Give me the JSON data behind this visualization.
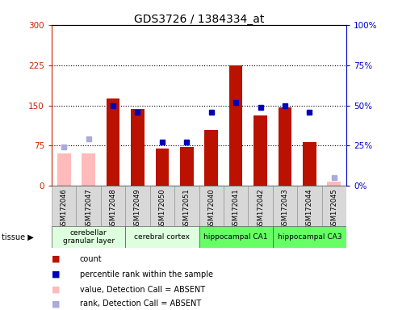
{
  "title": "GDS3726 / 1384334_at",
  "samples": [
    "GSM172046",
    "GSM172047",
    "GSM172048",
    "GSM172049",
    "GSM172050",
    "GSM172051",
    "GSM172040",
    "GSM172041",
    "GSM172042",
    "GSM172043",
    "GSM172044",
    "GSM172045"
  ],
  "count_values": [
    null,
    null,
    163,
    143,
    70,
    73,
    105,
    225,
    132,
    147,
    82,
    null
  ],
  "count_absent": [
    60,
    60,
    null,
    null,
    null,
    null,
    null,
    null,
    null,
    null,
    null,
    8
  ],
  "rank_values": [
    null,
    null,
    50,
    46,
    27,
    27,
    46,
    52,
    49,
    50,
    46,
    null
  ],
  "rank_absent": [
    24,
    29,
    null,
    null,
    null,
    null,
    null,
    null,
    null,
    null,
    null,
    5
  ],
  "tissues": [
    {
      "label": "cerebellar\ngranular layer",
      "start": 0,
      "end": 3,
      "color": "#ddffdd"
    },
    {
      "label": "cerebral cortex",
      "start": 3,
      "end": 6,
      "color": "#ddffdd"
    },
    {
      "label": "hippocampal CA1",
      "start": 6,
      "end": 9,
      "color": "#66ff66"
    },
    {
      "label": "hippocampal CA3",
      "start": 9,
      "end": 12,
      "color": "#66ff66"
    }
  ],
  "left_ylim": [
    0,
    300
  ],
  "right_ylim": [
    0,
    100
  ],
  "left_yticks": [
    0,
    75,
    150,
    225,
    300
  ],
  "right_yticks": [
    0,
    25,
    50,
    75,
    100
  ],
  "left_tick_labels": [
    "0",
    "75",
    "150",
    "225",
    "300"
  ],
  "right_tick_labels": [
    "0%",
    "25%",
    "50%",
    "75%",
    "100%"
  ],
  "bar_color_present": "#bb1100",
  "bar_color_absent": "#ffbbbb",
  "square_color_present": "#0000bb",
  "square_color_absent": "#aaaadd",
  "legend_items": [
    {
      "color": "#bb1100",
      "label": "count",
      "marker": "s"
    },
    {
      "color": "#0000bb",
      "label": "percentile rank within the sample",
      "marker": "s"
    },
    {
      "color": "#ffbbbb",
      "label": "value, Detection Call = ABSENT",
      "marker": "s"
    },
    {
      "color": "#aaaadd",
      "label": "rank, Detection Call = ABSENT",
      "marker": "s"
    }
  ],
  "grid_linestyle": "dotted",
  "grid_color": "black"
}
